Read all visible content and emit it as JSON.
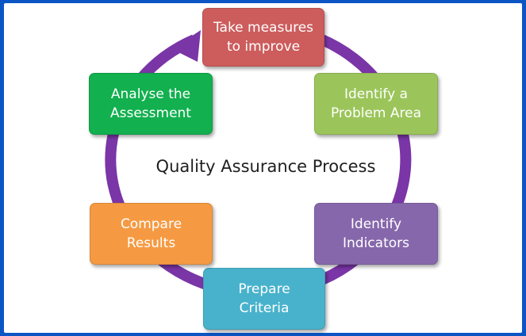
{
  "title": "Quality Assurance Process",
  "steps": [
    {
      "label": "Take measures\nto improve",
      "color": "#cd5c5c"
    },
    {
      "label": "Identify a\nProblem Area",
      "color": "#9bc55a"
    },
    {
      "label": "Identify\nIndicators",
      "color": "#8667ab"
    },
    {
      "label": "Prepare\nCriteria",
      "color": "#48b2cc"
    },
    {
      "label": "Compare\nResults",
      "color": "#f59a42"
    },
    {
      "label": "Analyse the\nAssessment",
      "color": "#12b04f"
    }
  ],
  "cycle_color": "#7a35a6"
}
